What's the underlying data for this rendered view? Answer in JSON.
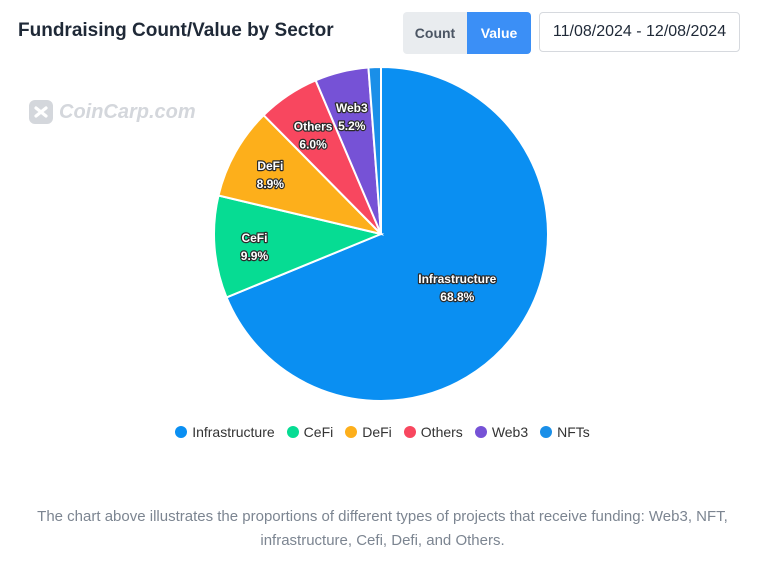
{
  "header": {
    "title": "Fundraising Count/Value by Sector",
    "toggle": {
      "count_label": "Count",
      "value_label": "Value",
      "selected": "Value"
    },
    "date_range": "11/08/2024 - 12/08/2024"
  },
  "watermark": {
    "text": "CoinCarp.com"
  },
  "colors": {
    "accent": "#3b8ff6",
    "Infrastructure": "#0a8ff2",
    "CeFi": "#06dc93",
    "DeFi": "#fdaf1b",
    "Others": "#f8475f",
    "Web3": "#7652d6",
    "NFTs": "#1a8fe8"
  },
  "chart_data": {
    "type": "pie",
    "title": "Fundraising Count/Value by Sector",
    "categories": [
      "Infrastructure",
      "CeFi",
      "DeFi",
      "Others",
      "Web3",
      "NFTs"
    ],
    "values": [
      68.8,
      9.9,
      8.9,
      6.0,
      5.2,
      1.2
    ],
    "unit": "%",
    "slice_labels": [
      {
        "name": "Infrastructure",
        "pct": "68.8%"
      },
      {
        "name": "CeFi",
        "pct": "9.9%"
      },
      {
        "name": "DeFi",
        "pct": "8.9%"
      },
      {
        "name": "Others",
        "pct": "6.0%"
      },
      {
        "name": "Web3",
        "pct": "5.2%"
      }
    ],
    "legend": [
      "Infrastructure",
      "CeFi",
      "DeFi",
      "Others",
      "Web3",
      "NFTs"
    ],
    "legend_position": "bottom-center"
  },
  "caption": "The chart above illustrates the proportions of different types of projects that receive funding: Web3, NFT, infrastructure, Cefi, Defi, and Others."
}
